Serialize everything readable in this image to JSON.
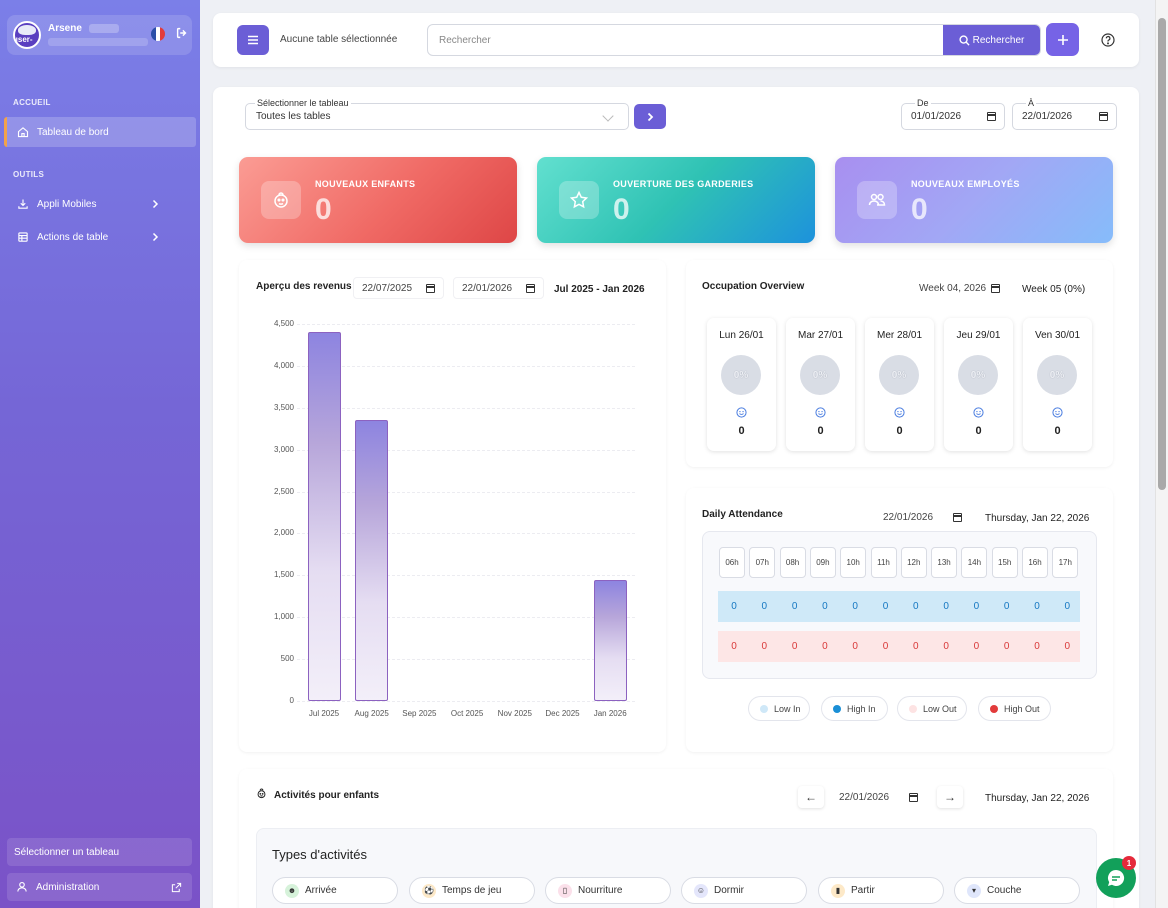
{
  "user": {
    "name": "Arsene",
    "avatar_text": "user-"
  },
  "sidebar": {
    "section_home": "ACCUEIL",
    "section_tools": "OUTILS",
    "items": [
      {
        "label": "Tableau de bord",
        "icon": "home-icon",
        "active": true
      },
      {
        "label": "Appli Mobiles",
        "icon": "download-icon"
      },
      {
        "label": "Actions de table",
        "icon": "table-icon"
      }
    ],
    "select_table": "Sélectionner un tableau",
    "admin": "Administration"
  },
  "topbar": {
    "no_table": "Aucune table sélectionnée",
    "search_placeholder": "Rechercher",
    "search_button": "Rechercher"
  },
  "filters": {
    "table_label": "Sélectionner le tableau",
    "table_value": "Toutes les tables",
    "from_label": "De",
    "from_value": "01/01/2026",
    "to_label": "À",
    "to_value": "22/01/2026"
  },
  "stats": [
    {
      "title": "NOUVEAUX ENFANTS",
      "value": "0",
      "color": "#ee6262"
    },
    {
      "title": "OUVERTURE DES GARDERIES",
      "value": "0",
      "color": "#2fc2b4"
    },
    {
      "title": "NOUVEAUX EMPLOYÉS",
      "value": "0",
      "color": "#9d93f0"
    }
  ],
  "revenue": {
    "title": "Aperçu des revenus",
    "date_from": "22/07/2025",
    "date_to": "22/01/2026",
    "range": "Jul 2025 - Jan 2026"
  },
  "chart_data": {
    "type": "bar",
    "title": "Aperçu des revenus",
    "categories": [
      "Jul 2025",
      "Aug 2025",
      "Sep 2025",
      "Oct 2025",
      "Nov 2025",
      "Dec 2025",
      "Jan 2026"
    ],
    "values": [
      4400,
      3350,
      0,
      0,
      0,
      0,
      1450
    ],
    "ylim": [
      0,
      4500
    ],
    "yticks": [
      "4,500",
      "4,000",
      "3,500",
      "3,000",
      "2,500",
      "2,000",
      "1,500",
      "1,000",
      "500",
      "0"
    ],
    "grid": true
  },
  "occupation": {
    "title": "Occupation Overview",
    "week_input": "Week 04, 2026",
    "week_label": "Week 05 (0%)",
    "days": [
      {
        "day": "Lun 26/01",
        "pct": "0%",
        "count": "0"
      },
      {
        "day": "Mar 27/01",
        "pct": "0%",
        "count": "0"
      },
      {
        "day": "Mer 28/01",
        "pct": "0%",
        "count": "0"
      },
      {
        "day": "Jeu 29/01",
        "pct": "0%",
        "count": "0"
      },
      {
        "day": "Ven 30/01",
        "pct": "0%",
        "count": "0"
      }
    ]
  },
  "attendance": {
    "title": "Daily Attendance",
    "date": "22/01/2026",
    "date_label": "Thursday, Jan 22, 2026",
    "hours": [
      "06h",
      "07h",
      "08h",
      "09h",
      "10h",
      "11h",
      "12h",
      "13h",
      "14h",
      "15h",
      "16h",
      "17h"
    ],
    "in_values": [
      "0",
      "0",
      "0",
      "0",
      "0",
      "0",
      "0",
      "0",
      "0",
      "0",
      "0",
      "0"
    ],
    "out_values": [
      "0",
      "0",
      "0",
      "0",
      "0",
      "0",
      "0",
      "0",
      "0",
      "0",
      "0",
      "0"
    ],
    "legend": [
      {
        "label": "Low In",
        "color": "#cfe8f8"
      },
      {
        "label": "High In",
        "color": "#1a8fd6"
      },
      {
        "label": "Low Out",
        "color": "#fde3e3"
      },
      {
        "label": "High Out",
        "color": "#e23b3b"
      }
    ]
  },
  "activities": {
    "title": "Activités pour enfants",
    "date": "22/01/2026",
    "date_label": "Thursday, Jan 22, 2026",
    "types_title": "Types d'activités",
    "types": [
      {
        "label": "Arrivée",
        "icon": "arrival-icon"
      },
      {
        "label": "Temps de jeu",
        "icon": "ball-icon"
      },
      {
        "label": "Nourriture",
        "icon": "bottle-icon"
      },
      {
        "label": "Dormir",
        "icon": "sleep-icon"
      },
      {
        "label": "Partir",
        "icon": "door-icon"
      },
      {
        "label": "Couche",
        "icon": "diaper-icon"
      }
    ]
  },
  "chat": {
    "badge": "1"
  }
}
